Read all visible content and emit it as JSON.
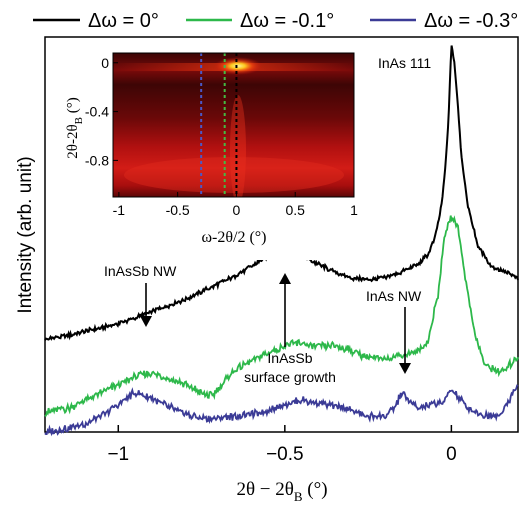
{
  "chart_data": [
    {
      "type": "line",
      "xlabel_main": "2θ − 2θ",
      "xlabel_sub": "B",
      "xlabel_unit": " (°)",
      "ylabel": "Intensity (arb. unit)",
      "xlim": [
        -1.22,
        0.2
      ],
      "ylim": [
        0,
        1
      ],
      "x_ticks": [
        -1,
        -0.5,
        0
      ],
      "x_tick_labels": [
        "−1",
        "−0.5",
        "0"
      ],
      "legend": [
        "Δω = 0°",
        "Δω = -0.1°",
        "Δω = -0.3°"
      ],
      "legend_placement": "top",
      "series": [
        {
          "name": "Δω = 0°",
          "color": "#000000",
          "points": [
            [
              -1.22,
              0.234
            ],
            [
              -1.15,
              0.245
            ],
            [
              -1.08,
              0.258
            ],
            [
              -1.02,
              0.27
            ],
            [
              -0.96,
              0.285
            ],
            [
              -0.9,
              0.305
            ],
            [
              -0.85,
              0.32
            ],
            [
              -0.8,
              0.335
            ],
            [
              -0.75,
              0.355
            ],
            [
              -0.7,
              0.375
            ],
            [
              -0.65,
              0.395
            ],
            [
              -0.6,
              0.42
            ],
            [
              -0.55,
              0.445
            ],
            [
              -0.5,
              0.46
            ],
            [
              -0.45,
              0.445
            ],
            [
              -0.4,
              0.425
            ],
            [
              -0.35,
              0.405
            ],
            [
              -0.3,
              0.39
            ],
            [
              -0.25,
              0.385
            ],
            [
              -0.2,
              0.39
            ],
            [
              -0.15,
              0.405
            ],
            [
              -0.1,
              0.425
            ],
            [
              -0.07,
              0.45
            ],
            [
              -0.05,
              0.49
            ],
            [
              -0.03,
              0.57
            ],
            [
              -0.02,
              0.65
            ],
            [
              -0.01,
              0.77
            ],
            [
              0.0,
              0.98
            ],
            [
              0.01,
              0.93
            ],
            [
              0.02,
              0.82
            ],
            [
              0.03,
              0.7
            ],
            [
              0.05,
              0.57
            ],
            [
              0.08,
              0.47
            ],
            [
              0.12,
              0.42
            ],
            [
              0.2,
              0.39
            ]
          ]
        },
        {
          "name": "Δω = -0.1°",
          "color": "#2db84a",
          "points": [
            [
              -1.22,
              0.05
            ],
            [
              -1.15,
              0.06
            ],
            [
              -1.1,
              0.08
            ],
            [
              -1.05,
              0.1
            ],
            [
              -1.0,
              0.12
            ],
            [
              -0.95,
              0.14
            ],
            [
              -0.9,
              0.15
            ],
            [
              -0.85,
              0.135
            ],
            [
              -0.8,
              0.12
            ],
            [
              -0.75,
              0.1
            ],
            [
              -0.72,
              0.09
            ],
            [
              -0.7,
              0.11
            ],
            [
              -0.66,
              0.15
            ],
            [
              -0.6,
              0.18
            ],
            [
              -0.55,
              0.2
            ],
            [
              -0.5,
              0.22
            ],
            [
              -0.45,
              0.225
            ],
            [
              -0.4,
              0.215
            ],
            [
              -0.35,
              0.22
            ],
            [
              -0.3,
              0.205
            ],
            [
              -0.25,
              0.19
            ],
            [
              -0.2,
              0.185
            ],
            [
              -0.15,
              0.195
            ],
            [
              -0.1,
              0.205
            ],
            [
              -0.07,
              0.23
            ],
            [
              -0.04,
              0.35
            ],
            [
              -0.02,
              0.5
            ],
            [
              0.0,
              0.545
            ],
            [
              0.02,
              0.52
            ],
            [
              0.04,
              0.4
            ],
            [
              0.07,
              0.25
            ],
            [
              0.1,
              0.17
            ],
            [
              0.15,
              0.15
            ],
            [
              0.2,
              0.19
            ]
          ]
        },
        {
          "name": "Δω = -0.3°",
          "color": "#3b3b96",
          "points": [
            [
              -1.22,
              0.0
            ],
            [
              -1.15,
              0.01
            ],
            [
              -1.1,
              0.02
            ],
            [
              -1.05,
              0.04
            ],
            [
              -1.0,
              0.07
            ],
            [
              -0.95,
              0.1
            ],
            [
              -0.9,
              0.085
            ],
            [
              -0.85,
              0.065
            ],
            [
              -0.8,
              0.045
            ],
            [
              -0.75,
              0.035
            ],
            [
              -0.7,
              0.035
            ],
            [
              -0.65,
              0.04
            ],
            [
              -0.6,
              0.045
            ],
            [
              -0.55,
              0.055
            ],
            [
              -0.5,
              0.07
            ],
            [
              -0.45,
              0.08
            ],
            [
              -0.4,
              0.075
            ],
            [
              -0.35,
              0.065
            ],
            [
              -0.3,
              0.055
            ],
            [
              -0.25,
              0.04
            ],
            [
              -0.2,
              0.04
            ],
            [
              -0.17,
              0.06
            ],
            [
              -0.15,
              0.1
            ],
            [
              -0.13,
              0.08
            ],
            [
              -0.1,
              0.06
            ],
            [
              -0.05,
              0.07
            ],
            [
              -0.02,
              0.08
            ],
            [
              0.0,
              0.11
            ],
            [
              0.02,
              0.09
            ],
            [
              0.05,
              0.06
            ],
            [
              0.1,
              0.04
            ],
            [
              0.15,
              0.045
            ],
            [
              0.2,
              0.12
            ]
          ]
        }
      ],
      "annotations": [
        {
          "lines": [
            "InAs 111"
          ]
        },
        {
          "lines": [
            "InAsSb NW"
          ]
        },
        {
          "lines": [
            "InAsSb",
            "surface growth"
          ]
        },
        {
          "lines": [
            "InAs NW"
          ]
        }
      ]
    },
    {
      "type": "heatmap",
      "xlabel": "ω-2θ/2 (°)",
      "ylabel_main": "2θ-2θ",
      "ylabel_sub": "B",
      "ylabel_unit": " (°)",
      "xlim": [
        -1.05,
        1.0
      ],
      "ylim": [
        -1.1,
        0.08
      ],
      "x_ticks": [
        -1,
        -0.5,
        0,
        0.5,
        1
      ],
      "x_tick_labels": [
        "-1",
        "-0.5",
        "0",
        "0.5",
        "1"
      ],
      "y_ticks": [
        0,
        -0.4,
        -0.8
      ],
      "y_tick_labels": [
        "0",
        "-0.4",
        "-0.8"
      ],
      "colors": {
        "low": "#330000",
        "mid": "#cc0000",
        "high": "#ffee55"
      },
      "markers": [
        {
          "x": -0.3,
          "color": "#4a58c8"
        },
        {
          "x": -0.1,
          "color": "#44bb44"
        },
        {
          "x": 0.0,
          "color": "#000000"
        }
      ]
    }
  ]
}
